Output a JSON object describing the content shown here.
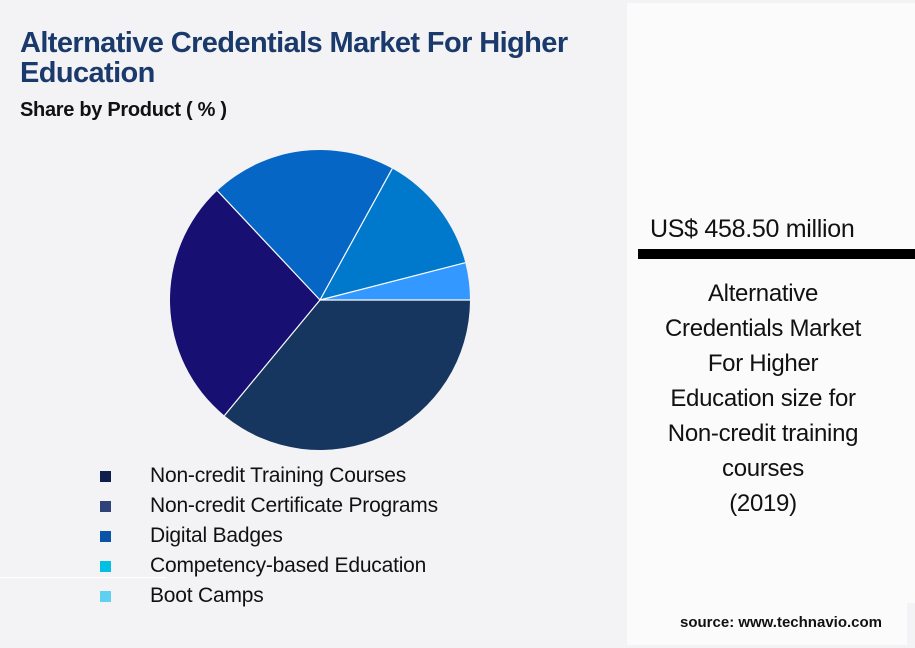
{
  "header": {
    "title": "Alternative Credentials Market For Higher Education",
    "subtitle": "Share by Product ( % )"
  },
  "legend": {
    "items": [
      {
        "label": "Non-credit Training Courses",
        "color": "#0f1f4b"
      },
      {
        "label": "Non-credit Certificate Programs",
        "color": "#2e4479"
      },
      {
        "label": "Digital Badges",
        "color": "#0a54a8"
      },
      {
        "label": "Competency-based Education",
        "color": "#00c0e4"
      },
      {
        "label": "Boot Camps",
        "color": "#5fd0ef"
      }
    ]
  },
  "callout": {
    "value": "US$ 458.50 million",
    "description_lines": [
      "Alternative",
      "Credentials Market",
      "For Higher",
      "Education size for",
      "Non-credit training",
      "courses",
      "(2019)"
    ]
  },
  "footer": {
    "source": "source: www.technavio.com"
  },
  "chart_data": {
    "type": "pie",
    "title": "Alternative Credentials Market For Higher Education",
    "subtitle": "Share by Product ( % )",
    "categories": [
      "Non-credit Training Courses",
      "Non-credit Certificate Programs",
      "Digital Badges",
      "Competency-based Education",
      "Boot Camps"
    ],
    "values": [
      36,
      27,
      20,
      13,
      4
    ],
    "slice_colors": [
      "#163660",
      "#170f72",
      "#0566c6",
      "#0079cc",
      "#3398ff"
    ],
    "start_angle_deg": 0,
    "direction": "clockwise",
    "legend_position": "bottom",
    "data_labels": false,
    "unit": "%"
  }
}
